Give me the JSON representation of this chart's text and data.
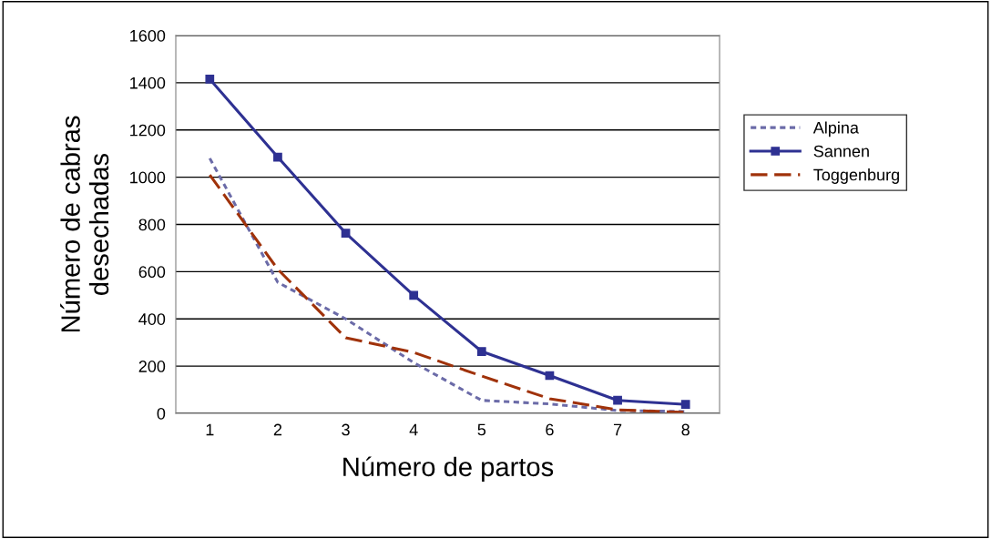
{
  "chart_data": {
    "type": "line",
    "xlabel": "Número de partos",
    "ylabel": "Número de cabras\ndesechadas",
    "categories": [
      "1",
      "2",
      "3",
      "4",
      "5",
      "6",
      "7",
      "8"
    ],
    "series": [
      {
        "name": "Alpina",
        "color": "#6b6ba8",
        "line_style": "dotted",
        "marker": "none",
        "values": [
          1080,
          555,
          400,
          215,
          55,
          40,
          12,
          8
        ]
      },
      {
        "name": "Sannen",
        "color": "#2e3192",
        "line_style": "solid",
        "marker": "square",
        "values": [
          1415,
          1085,
          763,
          500,
          262,
          160,
          55,
          38
        ]
      },
      {
        "name": "Toggenburg",
        "color": "#a0320a",
        "line_style": "dashed",
        "marker": "none",
        "values": [
          1010,
          610,
          320,
          258,
          158,
          62,
          15,
          4
        ]
      }
    ],
    "ylim": [
      0,
      1600
    ],
    "yticks": [
      0,
      200,
      400,
      600,
      800,
      1000,
      1200,
      1400,
      1600
    ],
    "grid": "y",
    "legend": "right"
  }
}
